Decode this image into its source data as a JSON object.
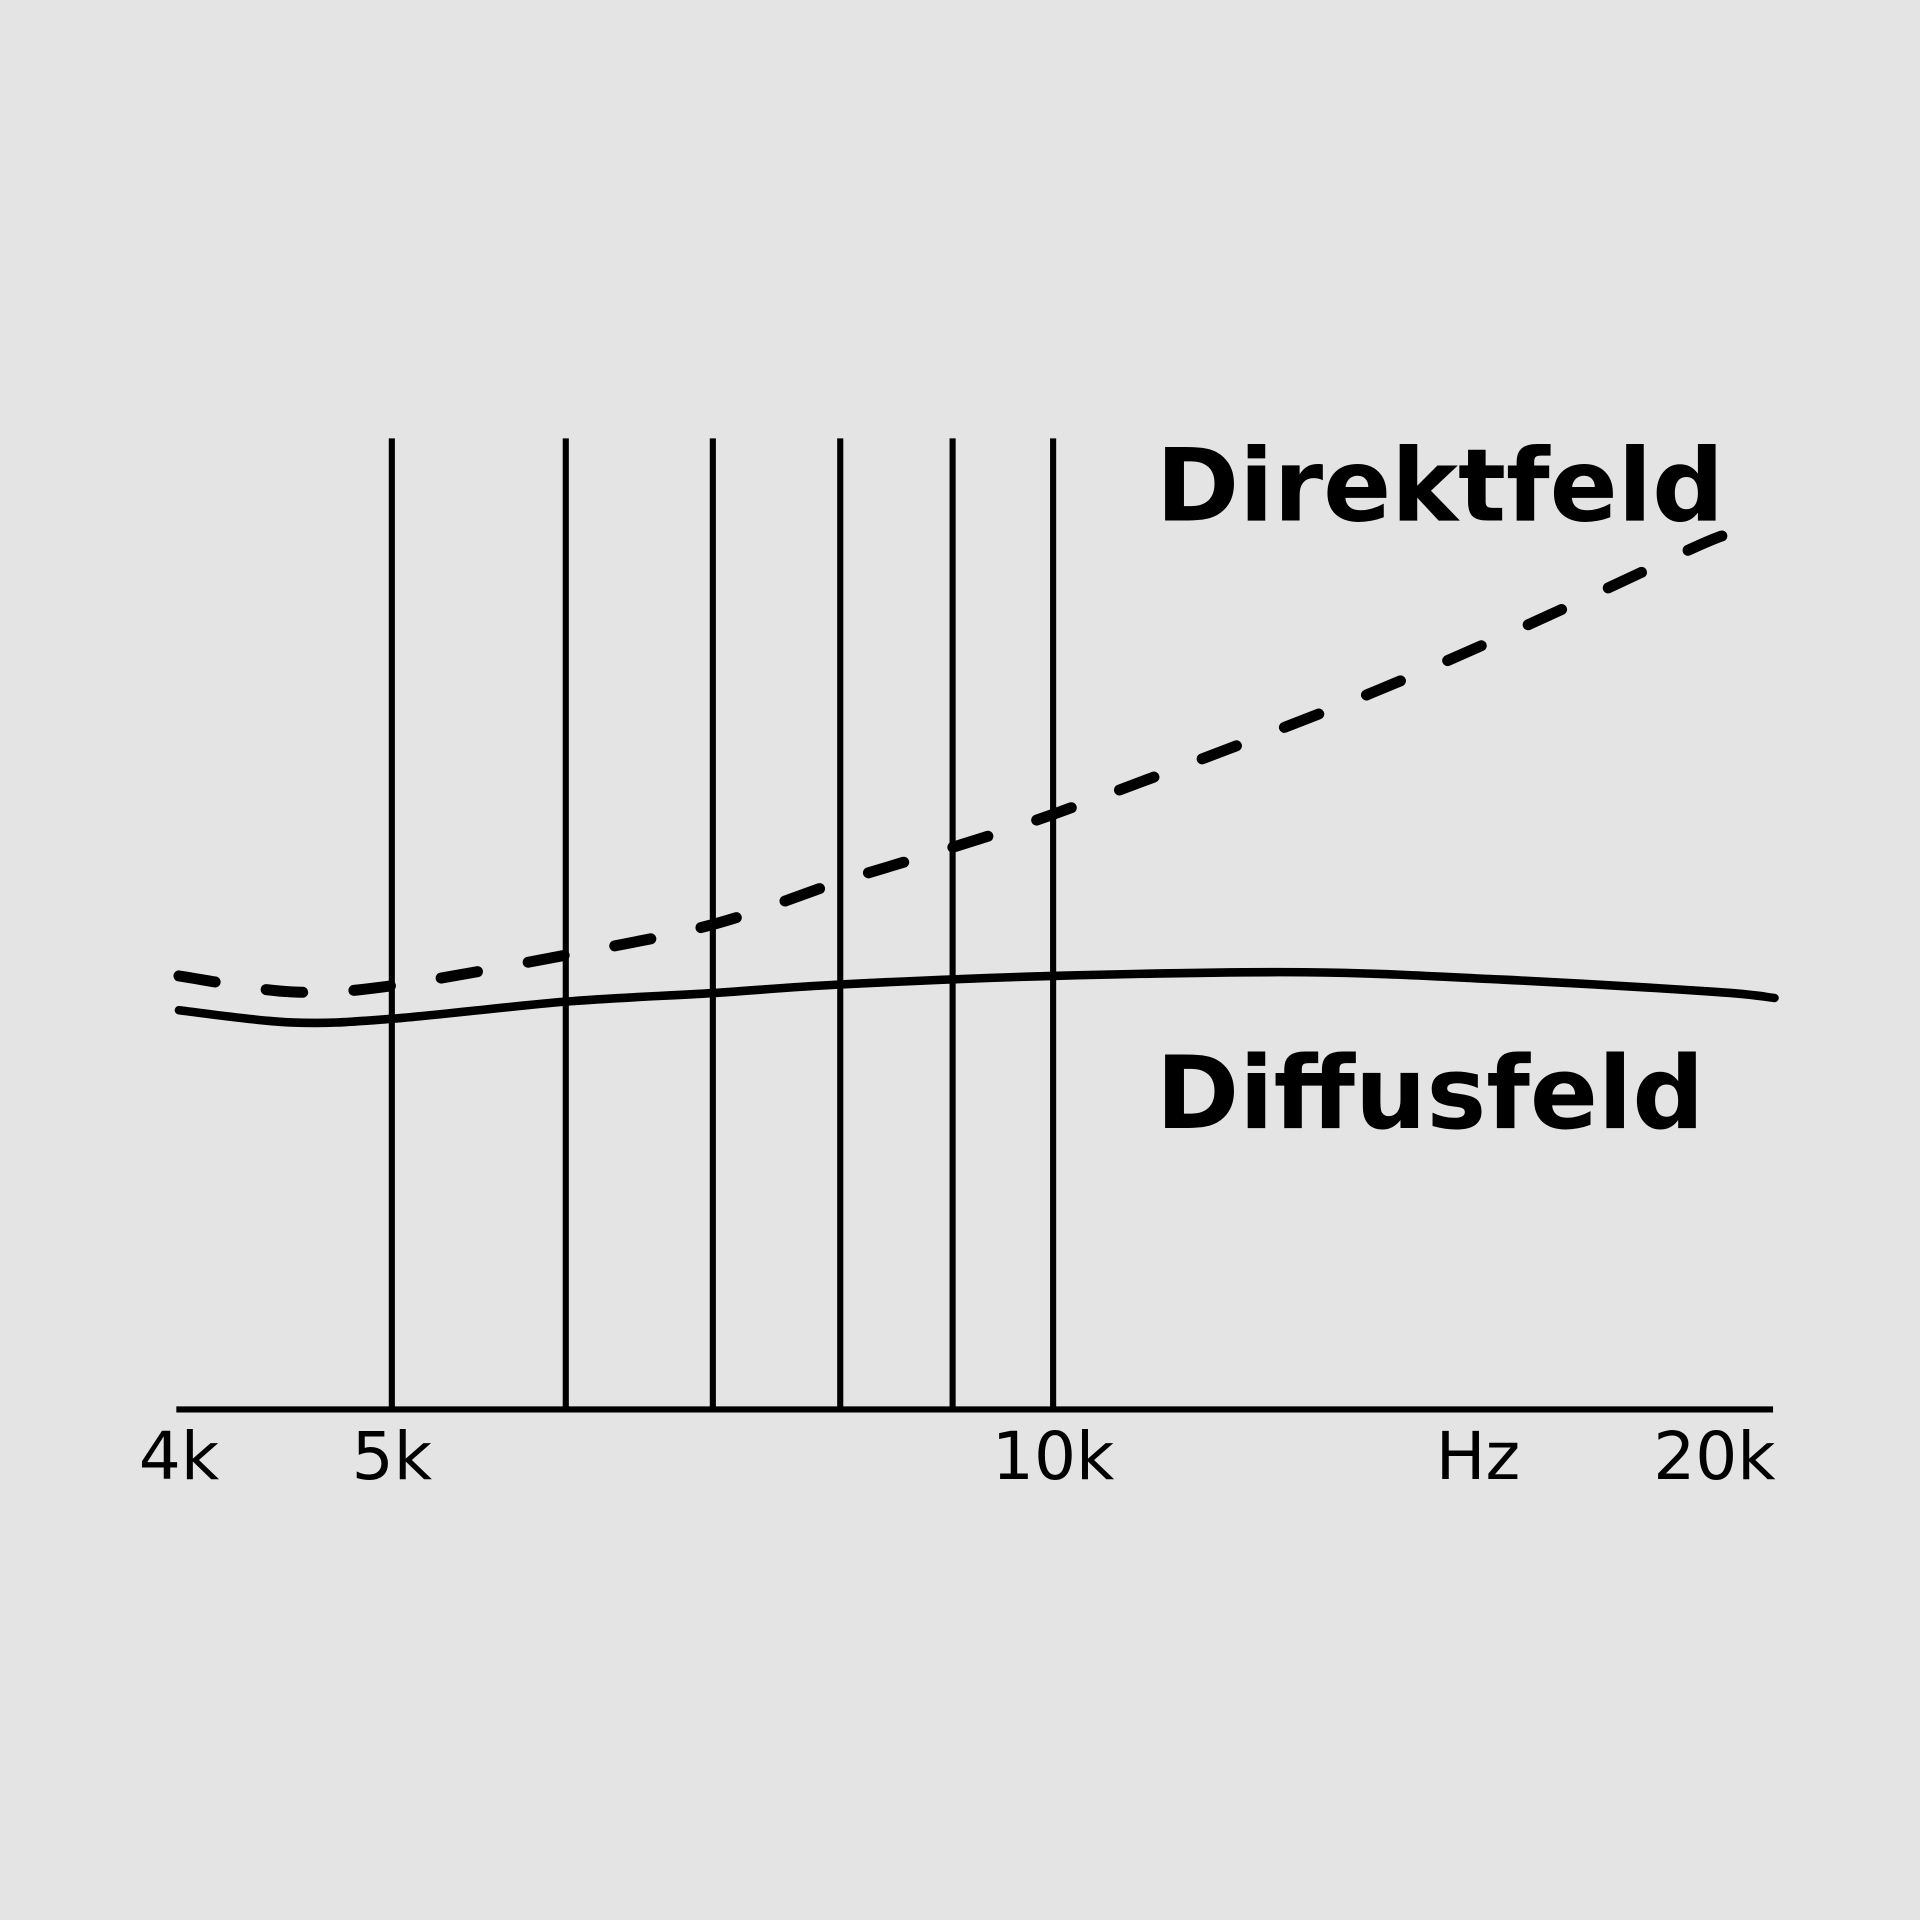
{
  "chart_data": {
    "type": "line",
    "title": "",
    "xlabel": "Hz",
    "ylabel": "",
    "x_scale": "log",
    "xlim": [
      4000,
      21300
    ],
    "ylim": [
      0,
      80
    ],
    "grid": "vertical",
    "x_tick_labels": [
      {
        "value": 4000,
        "label": "4k"
      },
      {
        "value": 5000,
        "label": "5k"
      },
      {
        "value": 10000,
        "label": "10k"
      },
      {
        "value": 20000,
        "label": "20k"
      }
    ],
    "gridlines_x": [
      5000,
      6000,
      7000,
      8000,
      9000,
      10000
    ],
    "series": [
      {
        "name": "Direktfeld",
        "style": "dashed",
        "x": [
          4000,
          4500,
          5000,
          6000,
          7000,
          8000,
          9000,
          10000,
          12000,
          14000,
          16000,
          18000,
          20000,
          21000
        ],
        "y": [
          35.3,
          34.0,
          34.5,
          37.0,
          39.5,
          43.0,
          45.8,
          48.5,
          53.8,
          58.5,
          63.0,
          67.2,
          71.0,
          72.0
        ]
      },
      {
        "name": "Diffusfeld",
        "style": "solid",
        "x": [
          4000,
          4500,
          5000,
          6000,
          7000,
          8000,
          10000,
          13000,
          16000,
          20000,
          21300
        ],
        "y": [
          32.5,
          31.5,
          31.8,
          33.2,
          33.9,
          34.6,
          35.3,
          35.6,
          35.0,
          34.0,
          33.5
        ]
      }
    ],
    "colors": {
      "background": "#e4e4e4",
      "lines": "#000000"
    }
  }
}
